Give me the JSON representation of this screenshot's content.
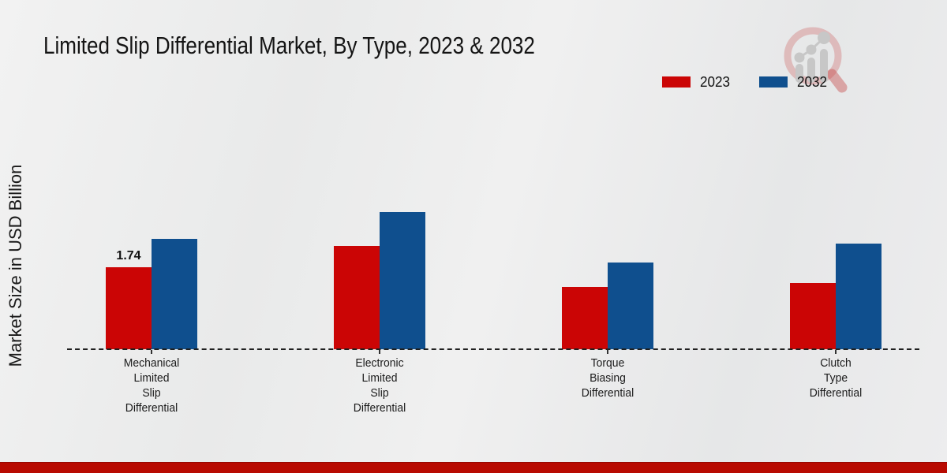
{
  "title": "Limited Slip Differential Market, By Type, 2023 & 2032",
  "ylabel": "Market Size in USD Billion",
  "legend": {
    "items": [
      {
        "label": "2023",
        "color": "#cb0505"
      },
      {
        "label": "2032",
        "color": "#0f4f8e"
      }
    ]
  },
  "icons": {
    "brand_logo": "magnifier-with-ascending-bar-chart"
  },
  "colors": {
    "series_2023": "#cb0505",
    "series_2032": "#0f4f8e",
    "background": "#ebecec",
    "baseline": "#1f1f1f",
    "footer_bar": "#b80a01"
  },
  "chart_data": {
    "type": "bar",
    "title": "Limited Slip Differential Market, By Type, 2023 & 2032",
    "ylabel": "Market Size in USD Billion",
    "xlabel": "",
    "categories": [
      "Mechanical Limited Slip Differential",
      "Electronic Limited Slip Differential",
      "Torque Biasing Differential",
      "Clutch Type Differential"
    ],
    "category_lines": [
      [
        "Mechanical",
        "Limited",
        "Slip",
        "Differential"
      ],
      [
        "Electronic",
        "Limited",
        "Slip",
        "Differential"
      ],
      [
        "Torque",
        "Biasing",
        "Differential"
      ],
      [
        "Clutch",
        "Type",
        "Differential"
      ]
    ],
    "series": [
      {
        "name": "2023",
        "color": "#cb0505",
        "values": [
          1.74,
          2.18,
          1.31,
          1.4
        ]
      },
      {
        "name": "2032",
        "color": "#0f4f8e",
        "values": [
          2.33,
          2.9,
          1.83,
          2.23
        ]
      }
    ],
    "data_labels": [
      {
        "series": "2023",
        "category_index": 0,
        "text": "1.74"
      }
    ],
    "ylim": [
      0,
      3.3
    ],
    "grid": false,
    "y_axis_ticks": "none",
    "baseline_style": "dashed",
    "legend_position": "top-right"
  },
  "footer": {
    "bar_color": "#b80a01"
  }
}
